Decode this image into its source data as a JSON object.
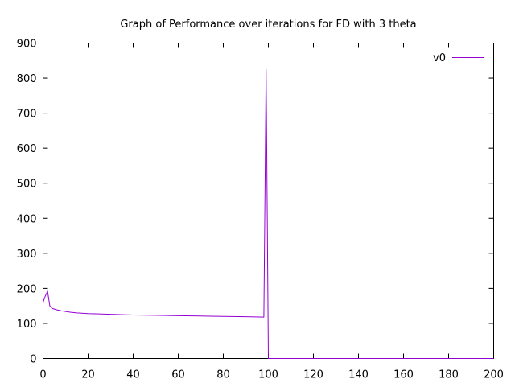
{
  "chart_data": {
    "type": "line",
    "title": "Graph of Performance over iterations for FD with 3 theta",
    "xlabel": "",
    "ylabel": "",
    "xlim": [
      0,
      200
    ],
    "ylim": [
      0,
      900
    ],
    "xticks": [
      0,
      20,
      40,
      60,
      80,
      100,
      120,
      140,
      160,
      180,
      200
    ],
    "yticks": [
      0,
      100,
      200,
      300,
      400,
      500,
      600,
      700,
      800,
      900
    ],
    "grid": false,
    "legend_position": "top-right",
    "series": [
      {
        "name": "v0",
        "color": "#9400d3",
        "x": [
          0,
          1,
          2,
          3,
          4,
          5,
          6,
          8,
          10,
          12,
          15,
          20,
          25,
          30,
          40,
          50,
          60,
          70,
          80,
          90,
          98,
          99,
          100,
          101,
          110,
          120,
          130,
          140,
          150,
          160,
          170,
          180,
          190,
          200
        ],
        "y": [
          160,
          178,
          192,
          150,
          143,
          141,
          139,
          136,
          134,
          132,
          130,
          128,
          127,
          126,
          124,
          123,
          122,
          121,
          120,
          119,
          118,
          825,
          0,
          0,
          0,
          0,
          0,
          0,
          0,
          0,
          0,
          0,
          0,
          0
        ]
      }
    ]
  }
}
